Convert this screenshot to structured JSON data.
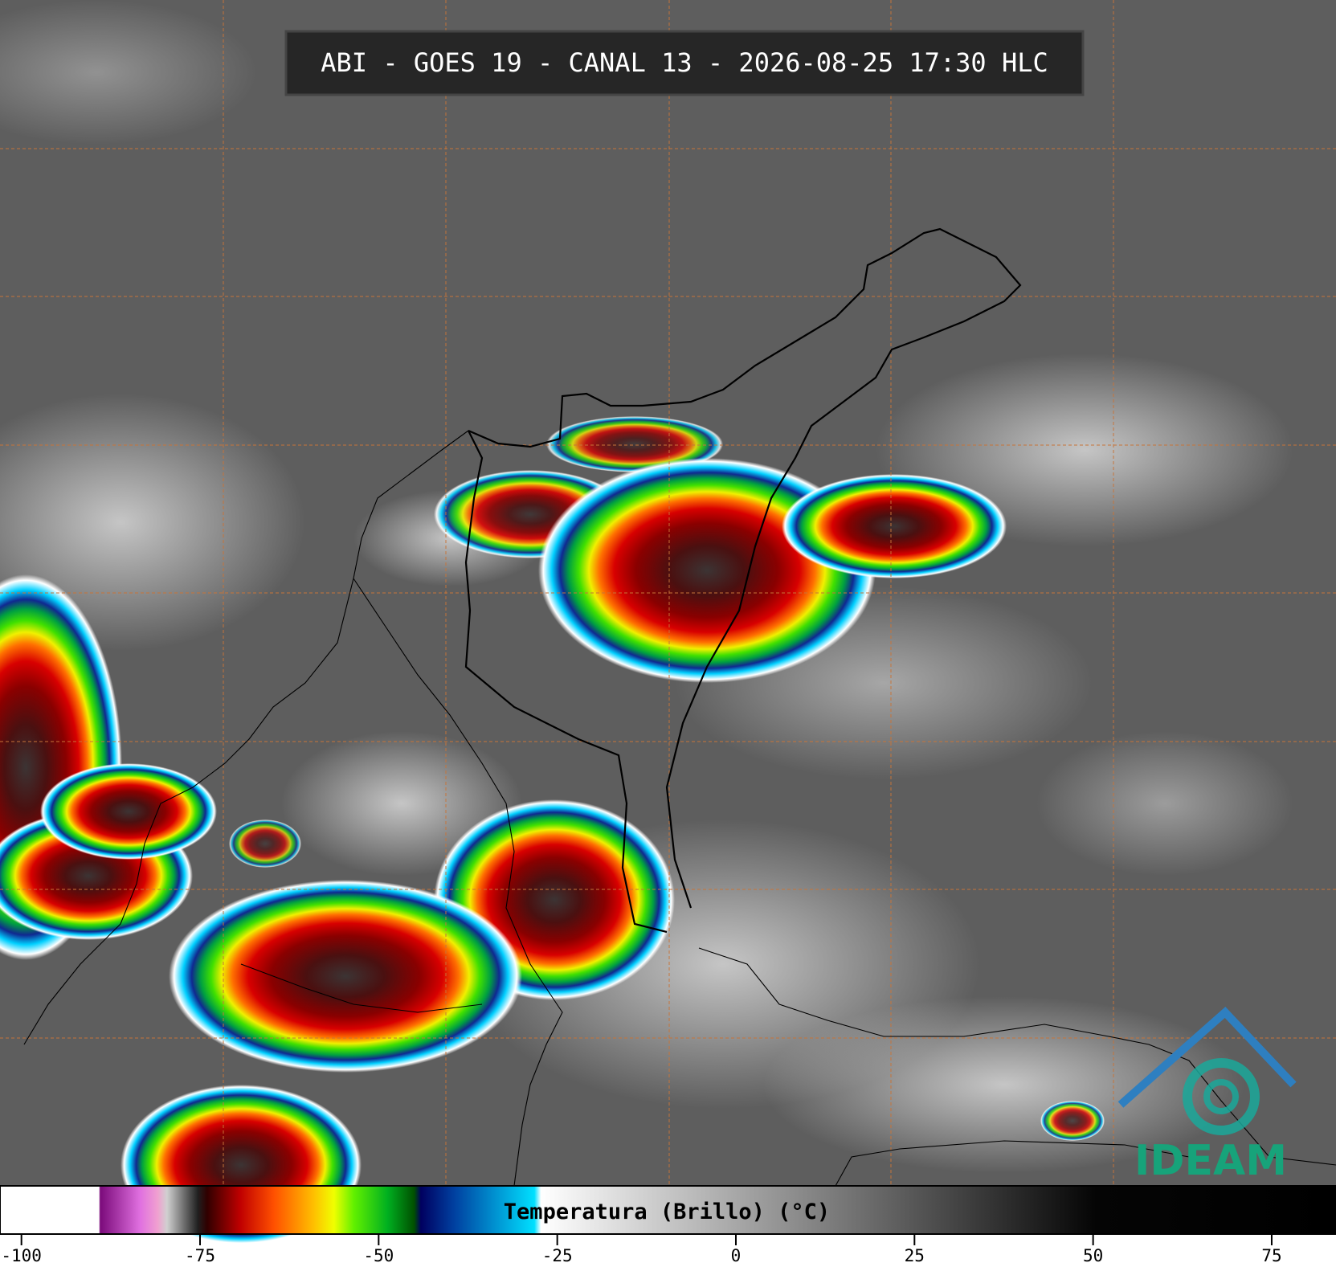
{
  "header": {
    "title": "ABI - GOES 19 - CANAL 13 - 2026-08-25 17:30 HLC"
  },
  "colorbar": {
    "label": "Temperatura (Brillo) (°C)",
    "lim": [
      -103,
      84
    ],
    "ticks": [
      -100,
      -75,
      -50,
      -25,
      0,
      25,
      50,
      75
    ]
  },
  "logo": {
    "text": "IDEAM"
  }
}
